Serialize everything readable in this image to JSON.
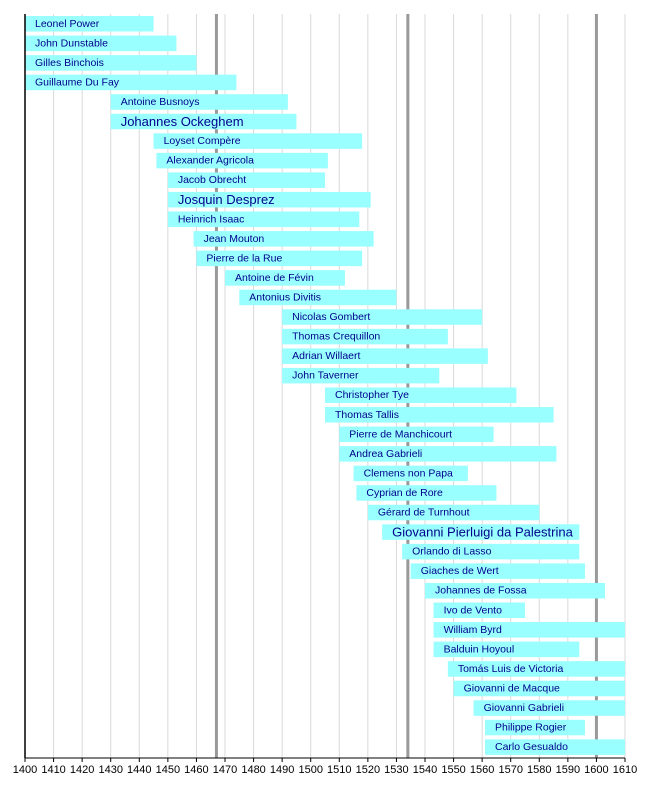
{
  "chart_data": {
    "type": "timeline",
    "title": "",
    "xlabel": "",
    "ylabel": "",
    "xlim": [
      1400,
      1610
    ],
    "x_ticks": [
      1400,
      1410,
      1420,
      1430,
      1440,
      1450,
      1460,
      1470,
      1480,
      1490,
      1500,
      1510,
      1520,
      1530,
      1540,
      1550,
      1560,
      1570,
      1580,
      1590,
      1600,
      1610
    ],
    "era_markers": [
      1467,
      1534,
      1600
    ],
    "grid": true,
    "bar_color": "#99ffff",
    "label_color": "#00008b",
    "composers": [
      {
        "name": "Leonel Power",
        "start": 1400,
        "end": 1445,
        "emphasis": false
      },
      {
        "name": "John Dunstable",
        "start": 1400,
        "end": 1453,
        "emphasis": false
      },
      {
        "name": "Gilles Binchois",
        "start": 1400,
        "end": 1460,
        "emphasis": false
      },
      {
        "name": "Guillaume Du Fay",
        "start": 1400,
        "end": 1474,
        "emphasis": false
      },
      {
        "name": "Antoine Busnoys",
        "start": 1430,
        "end": 1492,
        "emphasis": false
      },
      {
        "name": "Johannes Ockeghem",
        "start": 1430,
        "end": 1495,
        "emphasis": true
      },
      {
        "name": "Loyset Compère",
        "start": 1445,
        "end": 1518,
        "emphasis": false
      },
      {
        "name": "Alexander Agricola",
        "start": 1446,
        "end": 1506,
        "emphasis": false
      },
      {
        "name": "Jacob Obrecht",
        "start": 1450,
        "end": 1505,
        "emphasis": false
      },
      {
        "name": "Josquin Desprez",
        "start": 1450,
        "end": 1521,
        "emphasis": true
      },
      {
        "name": "Heinrich Isaac",
        "start": 1450,
        "end": 1517,
        "emphasis": false
      },
      {
        "name": "Jean Mouton",
        "start": 1459,
        "end": 1522,
        "emphasis": false
      },
      {
        "name": "Pierre de la Rue",
        "start": 1460,
        "end": 1518,
        "emphasis": false
      },
      {
        "name": "Antoine de Févin",
        "start": 1470,
        "end": 1512,
        "emphasis": false
      },
      {
        "name": "Antonius Divitis",
        "start": 1475,
        "end": 1530,
        "emphasis": false
      },
      {
        "name": "Nicolas Gombert",
        "start": 1490,
        "end": 1560,
        "emphasis": false
      },
      {
        "name": "Thomas Crequillon",
        "start": 1490,
        "end": 1548,
        "emphasis": false
      },
      {
        "name": "Adrian Willaert",
        "start": 1490,
        "end": 1562,
        "emphasis": false
      },
      {
        "name": "John Taverner",
        "start": 1490,
        "end": 1545,
        "emphasis": false
      },
      {
        "name": "Christopher Tye",
        "start": 1505,
        "end": 1572,
        "emphasis": false
      },
      {
        "name": "Thomas Tallis",
        "start": 1505,
        "end": 1585,
        "emphasis": false
      },
      {
        "name": "Pierre de Manchicourt",
        "start": 1510,
        "end": 1564,
        "emphasis": false
      },
      {
        "name": "Andrea Gabrieli",
        "start": 1510,
        "end": 1586,
        "emphasis": false
      },
      {
        "name": "Clemens non Papa",
        "start": 1515,
        "end": 1555,
        "emphasis": false
      },
      {
        "name": "Cyprian de Rore",
        "start": 1516,
        "end": 1565,
        "emphasis": false
      },
      {
        "name": "Gérard de Turnhout",
        "start": 1520,
        "end": 1580,
        "emphasis": false
      },
      {
        "name": "Giovanni Pierluigi da Palestrina",
        "start": 1525,
        "end": 1594,
        "emphasis": true
      },
      {
        "name": "Orlando di Lasso",
        "start": 1532,
        "end": 1594,
        "emphasis": false
      },
      {
        "name": "Giaches de Wert",
        "start": 1535,
        "end": 1596,
        "emphasis": false
      },
      {
        "name": "Johannes de Fossa",
        "start": 1540,
        "end": 1603,
        "emphasis": false
      },
      {
        "name": "Ivo de Vento",
        "start": 1543,
        "end": 1575,
        "emphasis": false
      },
      {
        "name": "William Byrd",
        "start": 1543,
        "end": 1623,
        "emphasis": false
      },
      {
        "name": "Balduin Hoyoul",
        "start": 1543,
        "end": 1594,
        "emphasis": false
      },
      {
        "name": "Tomás Luis de Victoria",
        "start": 1548,
        "end": 1611,
        "emphasis": false
      },
      {
        "name": "Giovanni de Macque",
        "start": 1550,
        "end": 1614,
        "emphasis": false
      },
      {
        "name": "Giovanni Gabrieli",
        "start": 1557,
        "end": 1612,
        "emphasis": false
      },
      {
        "name": "Philippe Rogier",
        "start": 1561,
        "end": 1596,
        "emphasis": false
      },
      {
        "name": "Carlo Gesualdo",
        "start": 1561,
        "end": 1613,
        "emphasis": false
      }
    ]
  }
}
